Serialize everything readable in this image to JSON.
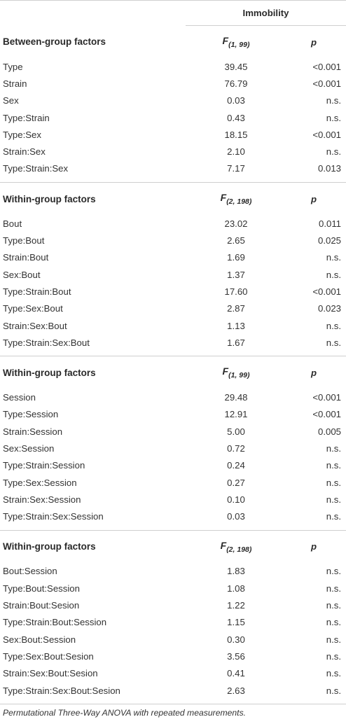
{
  "header": {
    "column_group": "Immobility"
  },
  "sections": [
    {
      "factor_type": "Between-group factors",
      "stat_letter": "F",
      "stat_df": "(1, 99)",
      "p_label": "p",
      "rows": [
        {
          "label": "Type",
          "f": "39.45",
          "p": "<0.001"
        },
        {
          "label": "Strain",
          "f": "76.79",
          "p": "<0.001"
        },
        {
          "label": "Sex",
          "f": "0.03",
          "p": "n.s."
        },
        {
          "label": "Type:Strain",
          "f": "0.43",
          "p": "n.s."
        },
        {
          "label": "Type:Sex",
          "f": "18.15",
          "p": "<0.001"
        },
        {
          "label": "Strain:Sex",
          "f": "2.10",
          "p": "n.s."
        },
        {
          "label": "Type:Strain:Sex",
          "f": "7.17",
          "p": "0.013"
        }
      ]
    },
    {
      "factor_type": "Within-group factors",
      "stat_letter": "F",
      "stat_df": "(2, 198)",
      "p_label": "p",
      "rows": [
        {
          "label": "Bout",
          "f": "23.02",
          "p": "0.011"
        },
        {
          "label": "Type:Bout",
          "f": "2.65",
          "p": "0.025"
        },
        {
          "label": "Strain:Bout",
          "f": "1.69",
          "p": "n.s."
        },
        {
          "label": "Sex:Bout",
          "f": "1.37",
          "p": "n.s."
        },
        {
          "label": "Type:Strain:Bout",
          "f": "17.60",
          "p": "<0.001"
        },
        {
          "label": "Type:Sex:Bout",
          "f": "2.87",
          "p": "0.023"
        },
        {
          "label": "Strain:Sex:Bout",
          "f": "1.13",
          "p": "n.s."
        },
        {
          "label": "Type:Strain:Sex:Bout",
          "f": "1.67",
          "p": "n.s."
        }
      ]
    },
    {
      "factor_type": "Within-group factors",
      "stat_letter": "F",
      "stat_df": "(1, 99)",
      "p_label": "p",
      "rows": [
        {
          "label": "Session",
          "f": "29.48",
          "p": "<0.001"
        },
        {
          "label": "Type:Session",
          "f": "12.91",
          "p": "<0.001"
        },
        {
          "label": "Strain:Session",
          "f": "5.00",
          "p": "0.005"
        },
        {
          "label": "Sex:Session",
          "f": "0.72",
          "p": "n.s."
        },
        {
          "label": "Type:Strain:Session",
          "f": "0.24",
          "p": "n.s."
        },
        {
          "label": "Type:Sex:Session",
          "f": "0.27",
          "p": "n.s."
        },
        {
          "label": "Strain:Sex:Session",
          "f": "0.10",
          "p": "n.s."
        },
        {
          "label": "Type:Strain:Sex:Session",
          "f": "0.03",
          "p": "n.s."
        }
      ]
    },
    {
      "factor_type": "Within-group factors",
      "stat_letter": "F",
      "stat_df": "(2, 198)",
      "p_label": "p",
      "rows": [
        {
          "label": "Bout:Session",
          "f": "1.83",
          "p": "n.s."
        },
        {
          "label": "Type:Bout:Session",
          "f": "1.08",
          "p": "n.s."
        },
        {
          "label": "Strain:Bout:Sesion",
          "f": "1.22",
          "p": "n.s."
        },
        {
          "label": "Type:Strain:Bout:Session",
          "f": "1.15",
          "p": "n.s."
        },
        {
          "label": "Sex:Bout:Session",
          "f": "0.30",
          "p": "n.s."
        },
        {
          "label": "Type:Sex:Bout:Sesion",
          "f": "3.56",
          "p": "n.s."
        },
        {
          "label": "Strain:Sex:Bout:Sesion",
          "f": "0.41",
          "p": "n.s."
        },
        {
          "label": "Type:Strain:Sex:Bout:Sesion",
          "f": "2.63",
          "p": "n.s."
        }
      ]
    }
  ],
  "footnote": "Permutational Three-Way ANOVA with repeated measurements."
}
